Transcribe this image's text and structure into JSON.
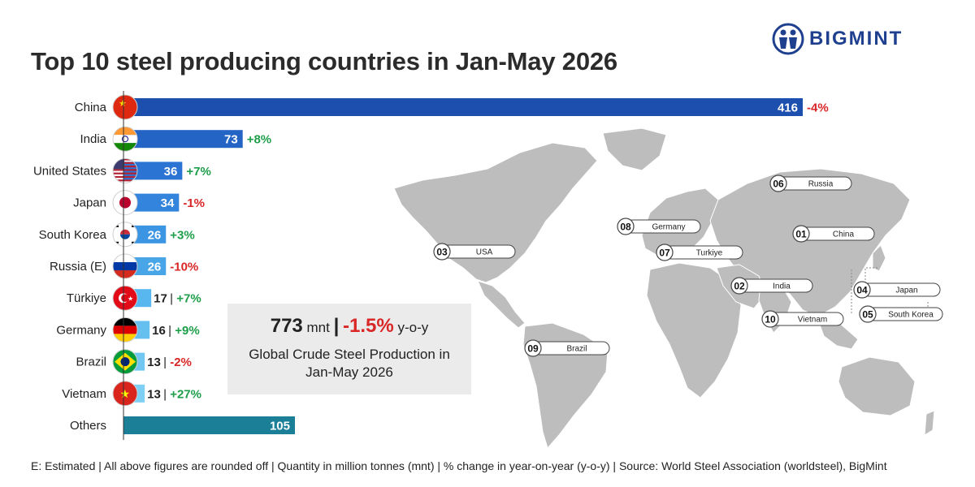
{
  "title": "Top 10 steel producing countries in Jan-May 2026",
  "brand": {
    "name": "BIGMINT",
    "color": "#1f3f8f",
    "icon": "bigmint-people-icon"
  },
  "chart_data": {
    "type": "bar",
    "orientation": "horizontal",
    "title": "Top 10 steel producing countries in Jan-May 2026",
    "unit": "mnt",
    "categories": [
      "China",
      "India",
      "United States",
      "Japan",
      "South Korea",
      "Russia (E)",
      "Türkiye",
      "Germany",
      "Brazil",
      "Vietnam",
      "Others"
    ],
    "values": [
      416,
      73,
      36,
      34,
      26,
      26,
      17,
      16,
      13,
      13,
      105
    ],
    "value_labels": [
      "416",
      "73",
      "36",
      "34",
      "26",
      "26",
      "17",
      "16",
      "13",
      "13",
      "105"
    ],
    "changes": [
      "-4%",
      "+8%",
      "+7%",
      "-1%",
      "+3%",
      "-10%",
      "+7%",
      "+9%",
      "-2%",
      "+27%",
      ""
    ],
    "flags": [
      "china-flag-icon",
      "india-flag-icon",
      "usa-flag-icon",
      "japan-flag-icon",
      "south-korea-flag-icon",
      "russia-flag-icon",
      "turkiye-flag-icon",
      "germany-flag-icon",
      "brazil-flag-icon",
      "vietnam-flag-icon",
      ""
    ],
    "bar_colors": [
      "#1d4fae",
      "#2464c4",
      "#2b74d4",
      "#3384dc",
      "#3c95e2",
      "#48a6e8",
      "#58b7ee",
      "#65c0f0",
      "#70c8f2",
      "#7dd0f4",
      "#1c7f98"
    ],
    "positive_color": "#1e9e4a",
    "negative_color": "#d92626",
    "xlim": [
      0,
      416
    ],
    "grid": false,
    "legend": "none"
  },
  "summary": {
    "total": "773",
    "unit": "mnt",
    "separator": "|",
    "change": "-1.5%",
    "change_suffix": "y-o-y",
    "caption": "Global Crude Steel Production in Jan-May 2026"
  },
  "map": {
    "labels": [
      {
        "rank": "06",
        "country": "Russia"
      },
      {
        "rank": "08",
        "country": "Germany"
      },
      {
        "rank": "01",
        "country": "China"
      },
      {
        "rank": "03",
        "country": "USA"
      },
      {
        "rank": "07",
        "country": "Turkiye"
      },
      {
        "rank": "02",
        "country": "India"
      },
      {
        "rank": "04",
        "country": "Japan"
      },
      {
        "rank": "10",
        "country": "Vietnam"
      },
      {
        "rank": "05",
        "country": "South Korea"
      },
      {
        "rank": "09",
        "country": "Brazil"
      }
    ]
  },
  "footnote": "E: Estimated | All above figures are rounded off | Quantity in million tonnes (mnt) | % change in year-on-year (y-o-y) | Source: World Steel Association (worldsteel), BigMint"
}
